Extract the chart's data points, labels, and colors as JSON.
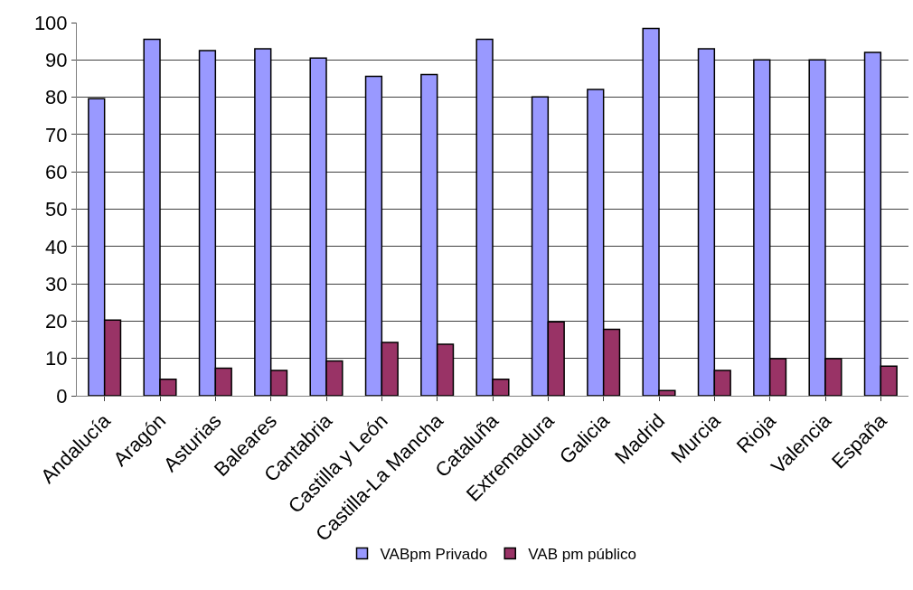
{
  "chart_data": {
    "type": "bar",
    "categories": [
      "Andalucía",
      "Aragón",
      "Asturias",
      "Baleares",
      "Cantabria",
      "Castilla y León",
      "Castilla-La Mancha",
      "Cataluña",
      "Extremadura",
      "Galicia",
      "Madrid",
      "Murcia",
      "Rioja",
      "Valencia",
      "España"
    ],
    "series": [
      {
        "name": "VABpm Privado",
        "color": "#9999ff",
        "values": [
          79.6,
          95.5,
          92.5,
          93.0,
          90.5,
          85.6,
          86.1,
          95.5,
          80.1,
          82.1,
          98.4,
          93.0,
          90.0,
          90.0,
          92.0
        ]
      },
      {
        "name": "VAB pm público",
        "color": "#993366",
        "values": [
          20.3,
          4.4,
          7.4,
          6.8,
          9.3,
          14.3,
          13.8,
          4.4,
          19.8,
          17.8,
          1.4,
          6.8,
          9.9,
          9.9,
          7.9
        ]
      }
    ],
    "ylim": [
      0,
      100
    ],
    "yticks": [
      0,
      10,
      20,
      30,
      40,
      50,
      60,
      70,
      80,
      90,
      100
    ],
    "grid": "y",
    "legend": "bottom"
  }
}
